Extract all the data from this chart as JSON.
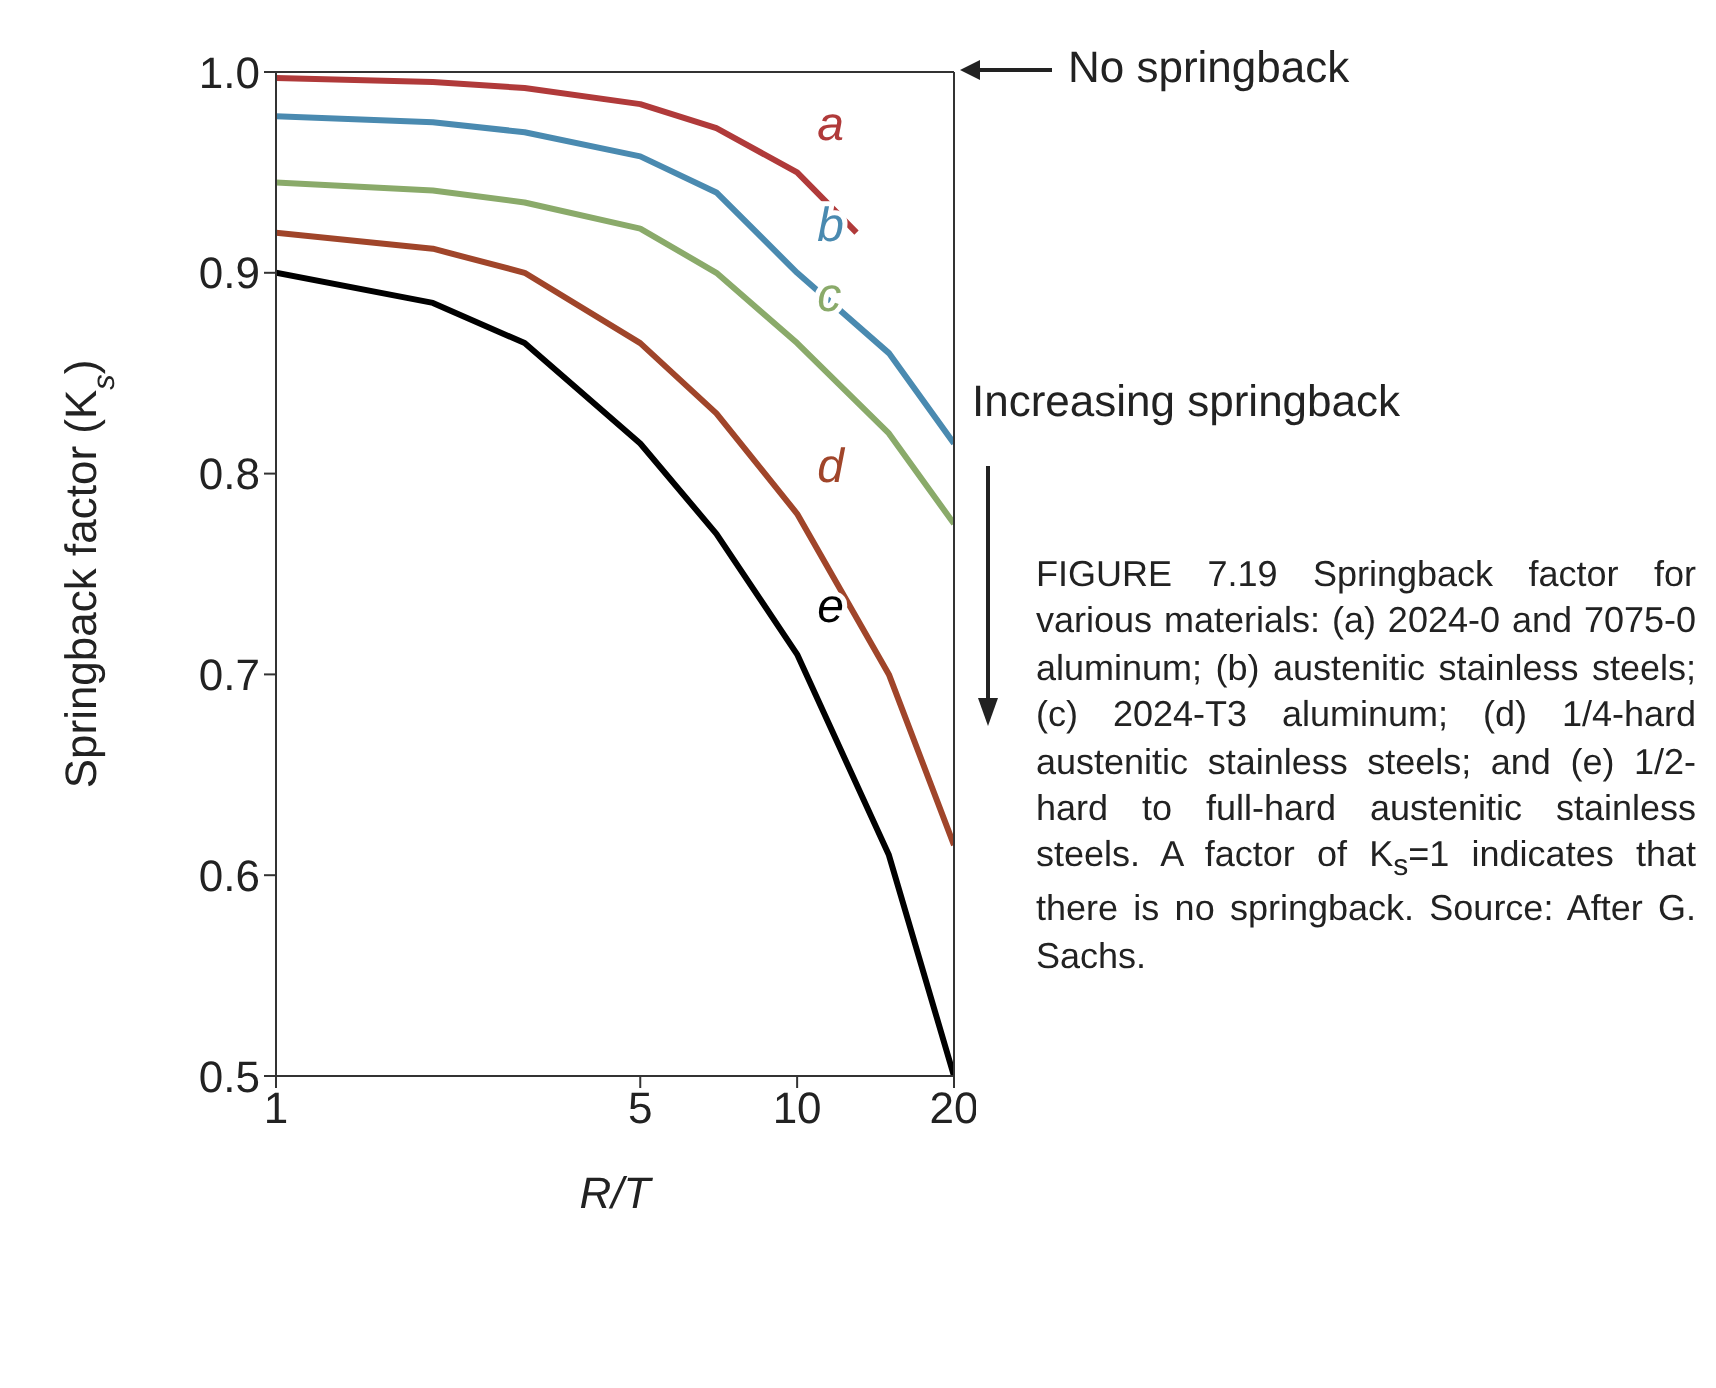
{
  "chart_data": {
    "type": "line",
    "xlabel": "R/T",
    "ylabel": "Springback factor (K$_{s}$)",
    "log": "x",
    "xlim": [
      1,
      20
    ],
    "xticks": [
      1,
      5,
      10,
      20
    ],
    "ylim": [
      0.5,
      1.0
    ],
    "yticks": [
      {
        "value": 0.5,
        "label": "0.5"
      },
      {
        "value": 0.6,
        "label": "0.6"
      },
      {
        "value": 0.7,
        "label": "0.7"
      },
      {
        "value": 0.8,
        "label": "0.8"
      },
      {
        "value": 0.9,
        "label": "0.9"
      },
      {
        "value": 1.0,
        "label": "1.0"
      }
    ],
    "marker": "none",
    "line_style": "solid",
    "series": [
      {
        "name": "a",
        "color": "#b03a3a",
        "x": [
          1,
          2,
          3,
          5,
          7,
          10,
          13
        ],
        "values": [
          0.997,
          0.995,
          0.992,
          0.984,
          0.972,
          0.95,
          0.92
        ]
      },
      {
        "name": "b",
        "color": "#4a8ab0",
        "x": [
          1,
          2,
          3,
          5,
          7,
          10,
          15,
          20
        ],
        "values": [
          0.978,
          0.975,
          0.97,
          0.958,
          0.94,
          0.9,
          0.86,
          0.815
        ]
      },
      {
        "name": "c",
        "color": "#8aaa6a",
        "x": [
          1,
          2,
          3,
          5,
          7,
          10,
          15,
          20
        ],
        "values": [
          0.945,
          0.941,
          0.935,
          0.922,
          0.9,
          0.865,
          0.82,
          0.775
        ]
      },
      {
        "name": "d",
        "color": "#a0452a",
        "x": [
          1,
          2,
          3,
          5,
          7,
          10,
          15,
          20
        ],
        "values": [
          0.92,
          0.912,
          0.9,
          0.865,
          0.83,
          0.78,
          0.7,
          0.615
        ]
      },
      {
        "name": "e",
        "color": "#000000",
        "x": [
          1,
          2,
          3,
          5,
          7,
          10,
          15,
          20
        ],
        "values": [
          0.9,
          0.885,
          0.865,
          0.815,
          0.77,
          0.71,
          0.61,
          0.5
        ]
      }
    ],
    "annotations": [
      "No springback",
      "Increasing springback",
      "FIGURE 7.19 Springback factor for various materials: (a) 2024-0 and 7075-0 aluminum; (b) austenitic stainless steels; (c) 2024-T3 aluminum; (d) 1/4-hard austenitic stainless steels; and (e) 1/2-hard to full-hard austenitic stainless steels. A factor of K$_{s}$=1 indicates that there is no springback. Source: After G. Sachs."
    ]
  }
}
